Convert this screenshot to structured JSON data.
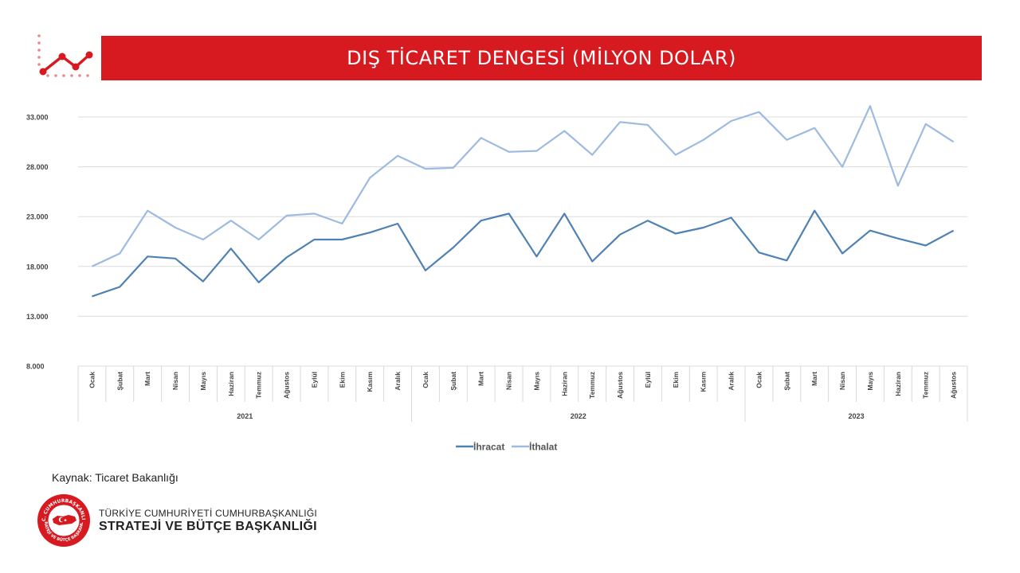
{
  "header": {
    "title": "DIŞ TİCARET DENGESİ (MİLYON DOLAR)",
    "icon": "trend-line-icon"
  },
  "source_text": "Kaynak: Ticaret Bakanlığı",
  "footer": {
    "org_line1": "TÜRKİYE CUMHURİYETİ CUMHURBAŞKANLIĞI",
    "org_line2": "STRATEJİ VE BÜTÇE BAŞKANLIĞI",
    "seal_top_text": "T.C. CUMHURBAŞKANLIĞI",
    "seal_bottom_text": "STRATEJİ VE BÜTÇE BAŞKANLIĞI"
  },
  "colors": {
    "accent": "#d71920",
    "ihracat": "#4f81b3",
    "ithalat": "#9dbbe0"
  },
  "chart_data": {
    "type": "line",
    "title": "DIŞ TİCARET DENGESİ (MİLYON DOLAR)",
    "ylim": [
      8000,
      33000
    ],
    "yticks": [
      8000,
      13000,
      18000,
      23000,
      28000,
      33000
    ],
    "ytick_labels": [
      "8.000",
      "13.000",
      "18.000",
      "23.000",
      "28.000",
      "33.000"
    ],
    "grid": true,
    "legend": "bottom-center",
    "categories": [
      "Ocak",
      "Şubat",
      "Mart",
      "Nisan",
      "Mayıs",
      "Haziran",
      "Temmuz",
      "Ağustos",
      "Eylül",
      "Ekim",
      "Kasım",
      "Aralık",
      "Ocak",
      "Şubat",
      "Mart",
      "Nisan",
      "Mayıs",
      "Haziran",
      "Temmuz",
      "Ağustos",
      "Eylül",
      "Ekim",
      "Kasım",
      "Aralık",
      "Ocak",
      "Şubat",
      "Mart",
      "Nisan",
      "Mayıs",
      "Haziran",
      "Temmuz",
      "Ağustos"
    ],
    "groups": [
      {
        "label": "2021",
        "start": 0,
        "count": 12
      },
      {
        "label": "2022",
        "start": 12,
        "count": 12
      },
      {
        "label": "2023",
        "start": 24,
        "count": 8
      }
    ],
    "series": [
      {
        "name": "İhracat",
        "color": "#4f81b3",
        "values": [
          15000,
          15950,
          19000,
          18800,
          16500,
          19800,
          16400,
          18900,
          20700,
          20700,
          21400,
          22300,
          17600,
          19900,
          22600,
          23300,
          19000,
          23300,
          18500,
          21200,
          22600,
          21300,
          21900,
          22900,
          19400,
          18600,
          23600,
          19300,
          21600,
          20800,
          20100,
          21600
        ]
      },
      {
        "name": "İthalat",
        "color": "#9dbbe0",
        "values": [
          18000,
          19300,
          23600,
          21900,
          20700,
          22600,
          20700,
          23100,
          23300,
          22300,
          26900,
          29100,
          27800,
          27900,
          30900,
          29500,
          29600,
          31600,
          29200,
          32500,
          32200,
          29200,
          30700,
          32600,
          33500,
          30700,
          31900,
          28000,
          34100,
          26100,
          32300,
          30500
        ]
      }
    ]
  }
}
